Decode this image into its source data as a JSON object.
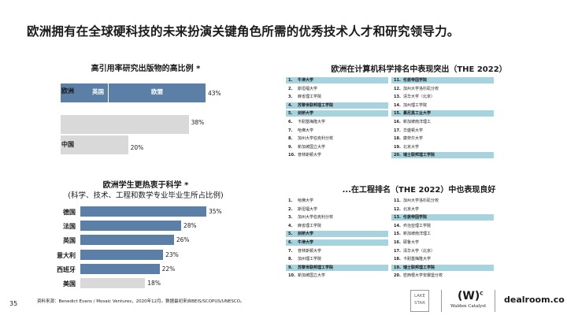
{
  "title": "欧洲拥有在全球硬科技的未来扮演关键角色所需的优秀技术人才和研究领导力。",
  "citations": {
    "title": "高引用率研究出版物的高比例 *",
    "rows": [
      {
        "label": "欧洲",
        "value": 43,
        "display": "43%",
        "segments": [
          "英国",
          "欧盟"
        ],
        "color": "#5b7fa6"
      },
      {
        "label": "",
        "value": 38,
        "display": "38%",
        "color": "#d9d9d9"
      },
      {
        "label": "中国",
        "value": 20,
        "display": "20%",
        "color": "#d9d9d9"
      }
    ]
  },
  "students": {
    "title": "欧洲学生更热衷于科学 *",
    "subtitle": "(科学、技术、工程和数学专业毕业生所占比例)",
    "rows": [
      {
        "label": "德国",
        "value": 35,
        "display": "35%",
        "color": "#5b7fa6"
      },
      {
        "label": "法国",
        "value": 28,
        "display": "28%",
        "color": "#5b7fa6"
      },
      {
        "label": "英国",
        "value": 26,
        "display": "26%",
        "color": "#5b7fa6"
      },
      {
        "label": "意大利",
        "value": 23,
        "display": "23%",
        "color": "#5b7fa6"
      },
      {
        "label": "西班牙",
        "value": 22,
        "display": "22%",
        "color": "#5b7fa6"
      },
      {
        "label": "美国",
        "value": 18,
        "display": "18%",
        "color": "#d9d9d9"
      }
    ]
  },
  "cs_ranking": {
    "title": "欧洲在计算机科学排名中表现突出（THE 2022）",
    "left": [
      {
        "n": "1.",
        "name": "牛津大学",
        "hl": true
      },
      {
        "n": "2.",
        "name": "斯坦福大学",
        "hl": false
      },
      {
        "n": "3.",
        "name": "麻省理工学院",
        "hl": false
      },
      {
        "n": "4.",
        "name": "苏黎世联邦理工学院",
        "hl": true
      },
      {
        "n": "5.",
        "name": "剑桥大学",
        "hl": true
      },
      {
        "n": "6.",
        "name": "卡耐基梅隆大学",
        "hl": false
      },
      {
        "n": "7.",
        "name": "哈佛大学",
        "hl": false
      },
      {
        "n": "8.",
        "name": "加州大学伯克利分校",
        "hl": false
      },
      {
        "n": "9.",
        "name": "新加坡国立大学",
        "hl": false
      },
      {
        "n": "10.",
        "name": "普林斯顿大学",
        "hl": false
      }
    ],
    "right": [
      {
        "n": "11.",
        "name": "伦敦帝国学院",
        "hl": true
      },
      {
        "n": "12.",
        "name": "加州大学洛杉矶分校",
        "hl": false
      },
      {
        "n": "13.",
        "name": "清华大学（北京）",
        "hl": false
      },
      {
        "n": "14.",
        "name": "加州理工学院",
        "hl": false
      },
      {
        "n": "15.",
        "name": "慕尼黑工业大学",
        "hl": true
      },
      {
        "n": "16.",
        "name": "新加坡南洋理工",
        "hl": false
      },
      {
        "n": "17.",
        "name": "华盛顿大学",
        "hl": false
      },
      {
        "n": "18.",
        "name": "康奈尔大学",
        "hl": false
      },
      {
        "n": "19.",
        "name": "北京大学",
        "hl": false
      },
      {
        "n": "20.",
        "name": "瑞士联邦理工学院",
        "hl": true
      }
    ]
  },
  "eng_ranking": {
    "title": "...在工程排名（THE 2022）中也表现良好",
    "left": [
      {
        "n": "1.",
        "name": "哈佛大学",
        "hl": false
      },
      {
        "n": "2.",
        "name": "斯坦福大学",
        "hl": false
      },
      {
        "n": "3.",
        "name": "加州大学伯克利分校",
        "hl": false
      },
      {
        "n": "4.",
        "name": "麻省理工学院",
        "hl": false
      },
      {
        "n": "5.",
        "name": "剑桥大学",
        "hl": true
      },
      {
        "n": "6.",
        "name": "牛津大学",
        "hl": true
      },
      {
        "n": "7.",
        "name": "普林斯顿大学",
        "hl": false
      },
      {
        "n": "8.",
        "name": "加州理工学院",
        "hl": false
      },
      {
        "n": "9.",
        "name": "苏黎世联邦理工学院",
        "hl": true
      },
      {
        "n": "10.",
        "name": "新加坡国立大学",
        "hl": false
      }
    ],
    "right": [
      {
        "n": "11.",
        "name": "加州大学洛杉矶分校",
        "hl": false
      },
      {
        "n": "12.",
        "name": "北京大学",
        "hl": false
      },
      {
        "n": "13.",
        "name": "伦敦帝国学院",
        "hl": true
      },
      {
        "n": "14.",
        "name": "乔治亚理工学院",
        "hl": false
      },
      {
        "n": "15.",
        "name": "新加坡南洋理工",
        "hl": false
      },
      {
        "n": "16.",
        "name": "耶鲁大学",
        "hl": false
      },
      {
        "n": "17.",
        "name": "清华大学（北京）",
        "hl": false
      },
      {
        "n": "18.",
        "name": "卡耐基梅隆大学",
        "hl": false
      },
      {
        "n": "19.",
        "name": "瑞士联邦理工学院",
        "hl": true
      },
      {
        "n": "20.",
        "name": "密西根大学安娜堡分校",
        "hl": false
      }
    ]
  },
  "footer": {
    "page": "35",
    "source": "资料来源：Benedict Evans / Mosaic Ventures，2020年12月。数据最初来自BEIS/SCOPUS/UNESCO。",
    "logo1": "LAKE STAR",
    "logo2": "(W)",
    "logo2_sup": "C",
    "logo2_text": "Walden Catalyst",
    "logo3": "dealroom.co"
  }
}
